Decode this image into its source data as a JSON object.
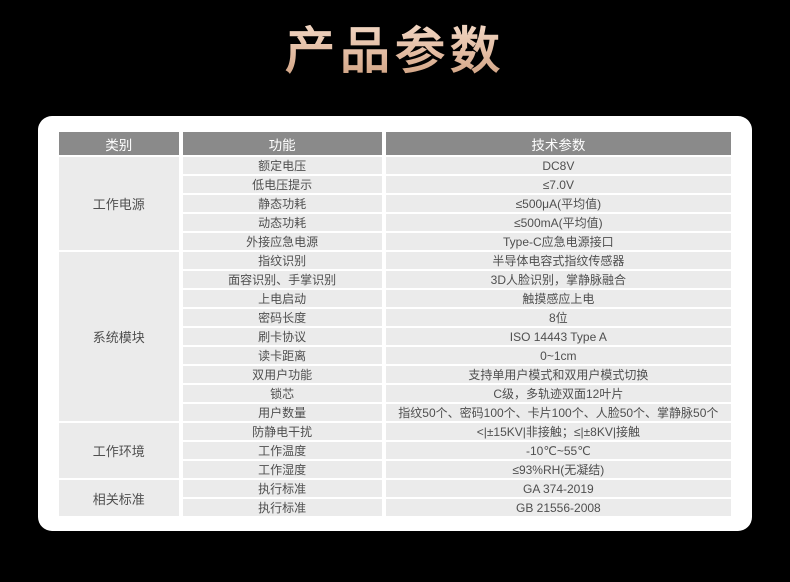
{
  "page_title": "产品参数",
  "colors": {
    "background": "#000000",
    "card": "#ffffff",
    "header_bg": "#8a8a8a",
    "header_text": "#ffffff",
    "row_bg": "#ebebeb",
    "cell_text": "#4f4f4f",
    "title_color": "#e2bba1"
  },
  "table": {
    "headers": [
      "类别",
      "功能",
      "技术参数"
    ],
    "groups": [
      {
        "category": "工作电源",
        "rows": [
          {
            "feature": "额定电压",
            "value": "DC8V"
          },
          {
            "feature": "低电压提示",
            "value": "≤7.0V"
          },
          {
            "feature": "静态功耗",
            "value": "≤500μA(平均值)"
          },
          {
            "feature": "动态功耗",
            "value": "≤500mA(平均值)"
          },
          {
            "feature": "外接应急电源",
            "value": "Type-C应急电源接口"
          }
        ]
      },
      {
        "category": "系统模块",
        "rows": [
          {
            "feature": "指纹识别",
            "value": "半导体电容式指纹传感器"
          },
          {
            "feature": "面容识别、手掌识别",
            "value": "3D人脸识别，掌静脉融合"
          },
          {
            "feature": "上电启动",
            "value": "触摸感应上电"
          },
          {
            "feature": "密码长度",
            "value": "8位"
          },
          {
            "feature": "刷卡协议",
            "value": "ISO 14443 Type A"
          },
          {
            "feature": "读卡距离",
            "value": "0~1cm"
          },
          {
            "feature": "双用户功能",
            "value": "支持单用户模式和双用户模式切换"
          },
          {
            "feature": "锁芯",
            "value": "C级，多轨迹双面12叶片"
          },
          {
            "feature": "用户数量",
            "value": "指纹50个、密码100个、卡片100个、人脸50个、掌静脉50个"
          }
        ]
      },
      {
        "category": "工作环境",
        "rows": [
          {
            "feature": "防静电干扰",
            "value": "<|±15KV|非接触；≤|±8KV|接触"
          },
          {
            "feature": "工作温度",
            "value": "-10℃~55℃"
          },
          {
            "feature": "工作湿度",
            "value": "≤93%RH(无凝结)"
          }
        ]
      },
      {
        "category": "相关标准",
        "rows": [
          {
            "feature": "执行标准",
            "value": "GA 374-2019"
          },
          {
            "feature": "执行标准",
            "value": "GB 21556-2008"
          }
        ]
      }
    ]
  }
}
